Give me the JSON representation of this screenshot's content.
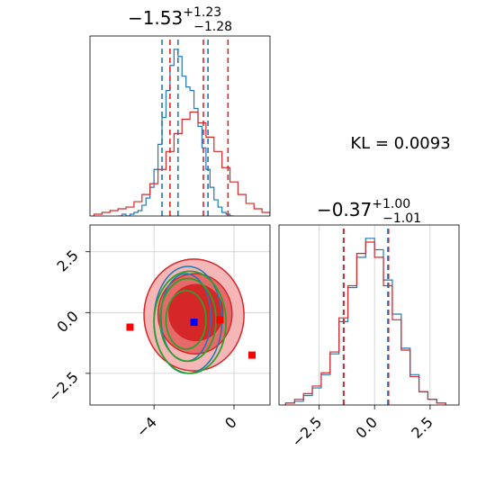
{
  "colors": {
    "blue": "#1f77b4",
    "red": "#d62728",
    "green": "#2ca02c",
    "red_fill_light": "#f4b6b6",
    "red_fill_mid": "#e66a6a",
    "marker_blue": "#0000ff",
    "marker_red": "#ff0000",
    "grid": "#cccccc"
  },
  "kl": {
    "text": "KL = 0.0093",
    "value": 0.0093
  },
  "chart_data": [
    {
      "type": "histogram",
      "panel": "top-left",
      "title_main": "−1.53",
      "title_sup": "+1.23",
      "title_sub": "−1.28",
      "xlim": [
        -7.2,
        1.8
      ],
      "grid": false,
      "series": [
        {
          "color": "blue",
          "bin_edges": [
            -5.8,
            -5.6,
            -5.4,
            -5.2,
            -5.0,
            -4.8,
            -4.6,
            -4.4,
            -4.2,
            -4.0,
            -3.8,
            -3.6,
            -3.4,
            -3.2,
            -3.0,
            -2.8,
            -2.6,
            -2.4,
            -2.2,
            -2.0,
            -1.8,
            -1.6,
            -1.4,
            -1.2,
            -1.0,
            -0.8,
            -0.6,
            -0.4,
            -0.2,
            0.0
          ],
          "counts": [
            0,
            1,
            0,
            1,
            2,
            3,
            6,
            10,
            16,
            26,
            40,
            55,
            70,
            84,
            93,
            89,
            78,
            72,
            70,
            60,
            50,
            38,
            26,
            16,
            9,
            5,
            2,
            1,
            0
          ]
        },
        {
          "color": "red",
          "bin_edges": [
            -7.0,
            -6.6,
            -6.2,
            -5.8,
            -5.4,
            -5.0,
            -4.6,
            -4.2,
            -3.8,
            -3.4,
            -3.0,
            -2.6,
            -2.2,
            -1.8,
            -1.4,
            -1.0,
            -0.6,
            -0.2,
            0.2,
            0.6,
            1.0,
            1.4,
            1.8
          ],
          "counts": [
            1,
            2,
            3,
            4,
            5,
            8,
            12,
            18,
            26,
            36,
            46,
            54,
            58,
            52,
            44,
            36,
            27,
            19,
            12,
            7,
            4,
            2
          ]
        }
      ],
      "quantile_lines": [
        {
          "color": "blue",
          "x": [
            -3.6,
            -2.8,
            -1.3
          ]
        },
        {
          "color": "red",
          "x": [
            -3.2,
            -1.53,
            -0.3
          ]
        }
      ]
    },
    {
      "type": "contour",
      "panel": "bottom-left",
      "xlim": [
        -7.2,
        1.8
      ],
      "ylim": [
        -3.8,
        3.6
      ],
      "xticks": [
        -4,
        0
      ],
      "xtick_labels": [
        "−4",
        "0"
      ],
      "yticks": [
        2.5,
        0.0,
        -2.5
      ],
      "ytick_labels": [
        "2.5",
        "0.0",
        "−2.5"
      ],
      "grid": true,
      "red_fill_levels": [
        {
          "fill": "red_fill_light",
          "cx": -2.0,
          "cy": -0.1,
          "rx": 2.5,
          "ry": 2.3
        },
        {
          "fill": "red_fill_mid",
          "cx": -1.95,
          "cy": -0.05,
          "rx": 1.85,
          "ry": 1.65
        },
        {
          "fill": "red",
          "cx": -1.9,
          "cy": 0.0,
          "rx": 1.35,
          "ry": 1.15
        }
      ],
      "blue_contours": [
        {
          "cx": -2.3,
          "cy": -0.3,
          "rx": 1.7,
          "ry": 2.2
        },
        {
          "cx": -2.4,
          "cy": -0.2,
          "rx": 1.25,
          "ry": 1.8
        }
      ],
      "green_contours": [
        {
          "cx": -2.2,
          "cy": -0.4,
          "rx": 1.8,
          "ry": 2.1
        },
        {
          "cx": -2.3,
          "cy": -0.3,
          "rx": 1.4,
          "ry": 1.7
        },
        {
          "cx": -2.4,
          "cy": -0.3,
          "rx": 1.0,
          "ry": 1.2
        }
      ],
      "markers": [
        {
          "color": "marker_blue",
          "x": -2.0,
          "y": -0.4
        },
        {
          "color": "marker_red",
          "x": -5.2,
          "y": -0.6
        },
        {
          "color": "marker_red",
          "x": -0.7,
          "y": -0.3
        },
        {
          "color": "marker_red",
          "x": 0.9,
          "y": -1.75
        }
      ]
    },
    {
      "type": "histogram",
      "panel": "bottom-right",
      "title_main": "−0.37",
      "title_sup": "+1.00",
      "title_sub": "−1.01",
      "xlim": [
        -4.3,
        3.8
      ],
      "xticks": [
        -2.5,
        0.0,
        2.5
      ],
      "xtick_labels": [
        "−2.5",
        "0.0",
        "2.5"
      ],
      "grid": true,
      "series": [
        {
          "color": "blue",
          "bin_edges": [
            -4.0,
            -3.6,
            -3.2,
            -2.8,
            -2.4,
            -2.0,
            -1.6,
            -1.2,
            -0.8,
            -0.4,
            0.0,
            0.4,
            0.8,
            1.2,
            1.6,
            2.0,
            2.4,
            2.8,
            3.2
          ],
          "counts": [
            1,
            2,
            5,
            9,
            16,
            27,
            44,
            62,
            78,
            88,
            82,
            66,
            48,
            30,
            16,
            7,
            3,
            1
          ]
        },
        {
          "color": "red",
          "bin_edges": [
            -4.0,
            -3.6,
            -3.2,
            -2.8,
            -2.4,
            -2.0,
            -1.6,
            -1.2,
            -0.8,
            -0.4,
            0.0,
            0.4,
            0.8,
            1.2,
            1.6,
            2.0,
            2.4,
            2.8,
            3.2
          ],
          "counts": [
            1,
            3,
            6,
            10,
            17,
            28,
            46,
            63,
            80,
            86,
            78,
            63,
            45,
            29,
            15,
            7,
            3,
            1
          ]
        }
      ],
      "quantile_lines": [
        {
          "color": "blue",
          "x": [
            -1.4,
            0.6
          ]
        },
        {
          "color": "red",
          "x": [
            -1.38,
            0.63
          ]
        }
      ]
    }
  ]
}
